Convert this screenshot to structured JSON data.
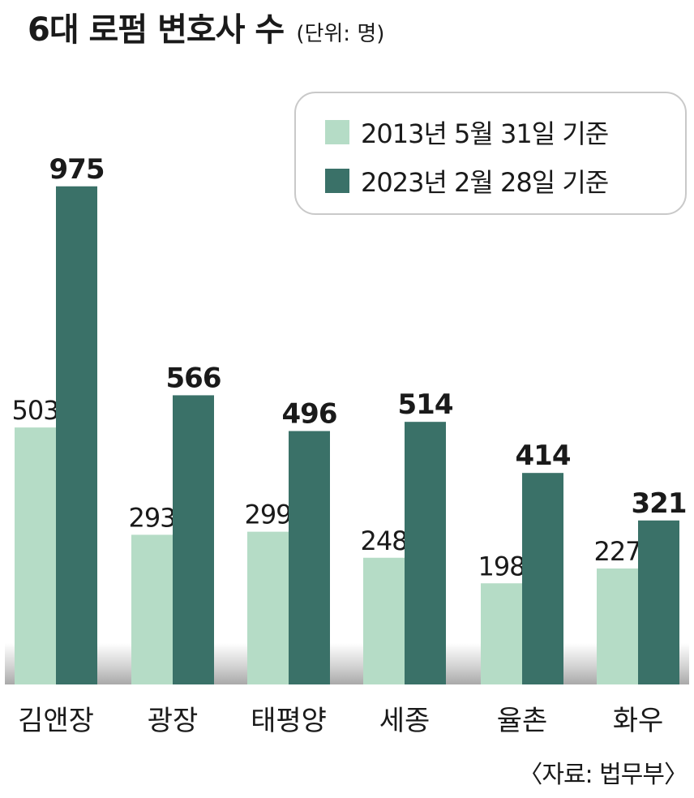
{
  "header": {
    "title": "6대 로펌 변호사 수",
    "unit": "(단위: 명)"
  },
  "source": "〈자료: 법무부〉",
  "colors": {
    "light": "#b5dcc6",
    "dark": "#3a7168",
    "floor": "#b3b3b3"
  },
  "chart_data": {
    "type": "bar",
    "categories": [
      "김앤장",
      "광장",
      "태평양",
      "세종",
      "율촌",
      "화우"
    ],
    "series": [
      {
        "name": "2013년 5월 31일 기준",
        "values": [
          503,
          293,
          299,
          248,
          198,
          227
        ]
      },
      {
        "name": "2023년 2월 28일 기준",
        "values": [
          975,
          566,
          496,
          514,
          414,
          321
        ]
      }
    ],
    "title": "6대 로펌 변호사 수",
    "ylabel": "",
    "xlabel": "",
    "ylim": [
      0,
      1000
    ],
    "grid": false,
    "legend": "top-right"
  }
}
